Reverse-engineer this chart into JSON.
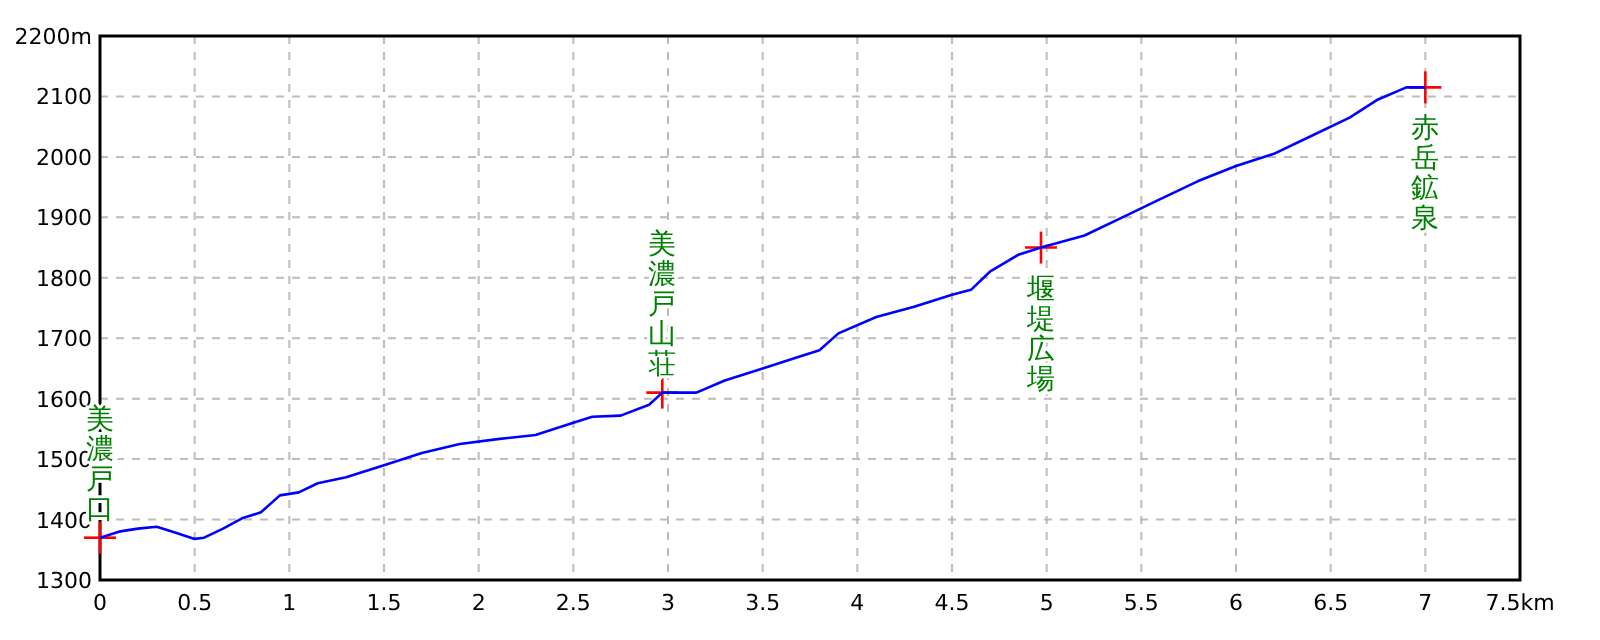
{
  "chart_data": {
    "type": "line",
    "xlim": [
      0,
      7.5
    ],
    "ylim": [
      1300,
      2200
    ],
    "xticks": [
      0,
      0.5,
      1,
      1.5,
      2,
      2.5,
      3,
      3.5,
      4,
      4.5,
      5,
      5.5,
      6,
      6.5,
      7,
      {
        "value": 7.5,
        "label": "7.5km"
      }
    ],
    "yticks": [
      1300,
      1400,
      1500,
      1600,
      1700,
      1800,
      1900,
      2000,
      2100,
      {
        "value": 2200,
        "label": "2200m"
      }
    ],
    "grid": true,
    "marker": "none",
    "line_style": "solid",
    "series": [
      {
        "color": "#0000ff",
        "x": [
          0,
          0.1,
          0.2,
          0.3,
          0.4,
          0.5,
          0.55,
          0.65,
          0.75,
          0.85,
          0.95,
          1.05,
          1.15,
          1.3,
          1.5,
          1.7,
          1.9,
          2.1,
          2.3,
          2.5,
          2.6,
          2.75,
          2.9,
          2.97,
          3.15,
          3.3,
          3.5,
          3.7,
          3.8,
          3.9,
          4.1,
          4.3,
          4.5,
          4.6,
          4.7,
          4.85,
          4.97,
          5.2,
          5.4,
          5.6,
          5.8,
          6.0,
          6.2,
          6.4,
          6.6,
          6.75,
          6.9,
          7.0
        ],
        "values": [
          1370,
          1380,
          1385,
          1388,
          1378,
          1368,
          1370,
          1385,
          1402,
          1412,
          1440,
          1445,
          1460,
          1470,
          1490,
          1510,
          1525,
          1533,
          1540,
          1560,
          1570,
          1572,
          1590,
          1610,
          1610,
          1630,
          1650,
          1670,
          1680,
          1708,
          1735,
          1752,
          1772,
          1780,
          1810,
          1838,
          1850,
          1870,
          1900,
          1930,
          1960,
          1985,
          2005,
          2035,
          2065,
          2095,
          2115,
          2115
        ]
      }
    ],
    "annotations": [
      {
        "text": "美濃戸口",
        "x": 0,
        "y": 1370
      },
      {
        "text": "美濃戸山荘",
        "x": 2.97,
        "y": 1610
      },
      {
        "text": "堰堤広場",
        "x": 4.97,
        "y": 1850
      },
      {
        "text": "赤岳鉱泉",
        "x": 7.0,
        "y": 2115
      }
    ]
  }
}
